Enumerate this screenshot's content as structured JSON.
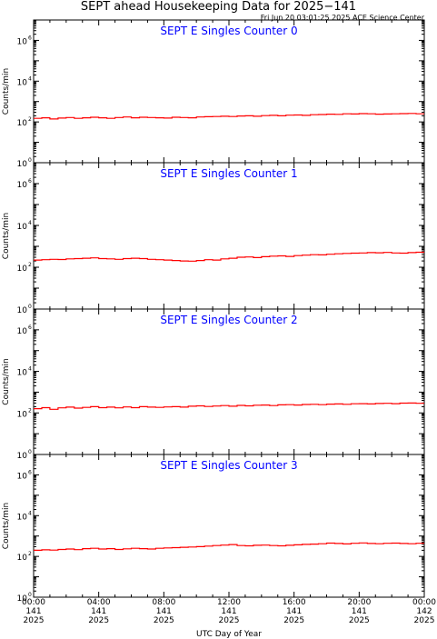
{
  "title": "SEPT ahead Housekeeping Data for 2025−141",
  "timestamp": "Fri Jun 20 03:01:25 2025 ACE Science Center",
  "colors": {
    "trace": "#ff0000",
    "panel_title": "#0000ff",
    "axes": "#000000",
    "background": "#ffffff"
  },
  "chart_data": [
    {
      "type": "line",
      "title": "SEPT E Singles Counter 0",
      "ylabel": "Counts/min",
      "yscale": "log",
      "ylim": [
        1,
        10000000
      ],
      "y_ticks": [
        {
          "base": "10",
          "exp": "0",
          "value": 1
        },
        {
          "base": "10",
          "exp": "2",
          "value": 100
        },
        {
          "base": "10",
          "exp": "4",
          "value": 10000
        },
        {
          "base": "10",
          "exp": "6",
          "value": 1000000
        }
      ],
      "x_hours": [
        0,
        0.5,
        1,
        1.5,
        2,
        2.5,
        3,
        3.5,
        4,
        4.5,
        5,
        5.5,
        6,
        6.5,
        7,
        7.5,
        8,
        8.5,
        9,
        9.5,
        10,
        10.5,
        11,
        11.5,
        12,
        12.5,
        13,
        13.5,
        14,
        14.5,
        15,
        15.5,
        16,
        16.5,
        17,
        17.5,
        18,
        18.5,
        19,
        19.5,
        20,
        20.5,
        21,
        21.5,
        22,
        22.5,
        23,
        23.5,
        24
      ],
      "y": [
        150,
        160,
        140,
        155,
        165,
        150,
        160,
        170,
        160,
        150,
        165,
        175,
        160,
        170,
        165,
        160,
        155,
        170,
        165,
        160,
        175,
        180,
        185,
        190,
        185,
        195,
        200,
        190,
        205,
        210,
        200,
        215,
        220,
        210,
        225,
        230,
        240,
        235,
        250,
        245,
        255,
        250,
        240,
        245,
        250,
        255,
        260,
        250,
        270
      ]
    },
    {
      "type": "line",
      "title": "SEPT E Singles Counter 1",
      "ylabel": "Counts/min",
      "yscale": "log",
      "ylim": [
        1,
        10000000
      ],
      "y_ticks": [
        {
          "base": "10",
          "exp": "0",
          "value": 1
        },
        {
          "base": "10",
          "exp": "2",
          "value": 100
        },
        {
          "base": "10",
          "exp": "4",
          "value": 10000
        },
        {
          "base": "10",
          "exp": "6",
          "value": 1000000
        }
      ],
      "x_hours": [
        0,
        0.5,
        1,
        1.5,
        2,
        2.5,
        3,
        3.5,
        4,
        4.5,
        5,
        5.5,
        6,
        6.5,
        7,
        7.5,
        8,
        8.5,
        9,
        9.5,
        10,
        10.5,
        11,
        11.5,
        12,
        12.5,
        13,
        13.5,
        14,
        14.5,
        15,
        15.5,
        16,
        16.5,
        17,
        17.5,
        18,
        18.5,
        19,
        19.5,
        20,
        20.5,
        21,
        21.5,
        22,
        22.5,
        23,
        23.5,
        24
      ],
      "y": [
        220,
        230,
        240,
        235,
        250,
        260,
        270,
        280,
        260,
        250,
        240,
        260,
        270,
        260,
        240,
        230,
        220,
        210,
        200,
        195,
        210,
        230,
        220,
        250,
        270,
        300,
        310,
        290,
        320,
        340,
        350,
        330,
        360,
        380,
        400,
        390,
        420,
        440,
        460,
        470,
        480,
        500,
        490,
        510,
        480,
        470,
        500,
        520,
        510
      ]
    },
    {
      "type": "line",
      "title": "SEPT E Singles Counter 2",
      "ylabel": "Counts/min",
      "yscale": "log",
      "ylim": [
        1,
        10000000
      ],
      "y_ticks": [
        {
          "base": "10",
          "exp": "0",
          "value": 1
        },
        {
          "base": "10",
          "exp": "2",
          "value": 100
        },
        {
          "base": "10",
          "exp": "4",
          "value": 10000
        },
        {
          "base": "10",
          "exp": "6",
          "value": 1000000
        }
      ],
      "x_hours": [
        0,
        0.5,
        1,
        1.5,
        2,
        2.5,
        3,
        3.5,
        4,
        4.5,
        5,
        5.5,
        6,
        6.5,
        7,
        7.5,
        8,
        8.5,
        9,
        9.5,
        10,
        10.5,
        11,
        11.5,
        12,
        12.5,
        13,
        13.5,
        14,
        14.5,
        15,
        15.5,
        16,
        16.5,
        17,
        17.5,
        18,
        18.5,
        19,
        19.5,
        20,
        20.5,
        21,
        21.5,
        22,
        22.5,
        23,
        23.5,
        24
      ],
      "y": [
        160,
        180,
        150,
        175,
        190,
        170,
        185,
        200,
        180,
        190,
        175,
        195,
        180,
        200,
        190,
        185,
        195,
        200,
        190,
        210,
        220,
        205,
        215,
        225,
        210,
        230,
        220,
        235,
        240,
        225,
        245,
        250,
        240,
        255,
        260,
        250,
        265,
        270,
        260,
        275,
        280,
        270,
        285,
        290,
        280,
        295,
        300,
        290,
        310
      ]
    },
    {
      "type": "line",
      "title": "SEPT E Singles Counter 3",
      "ylabel": "Counts/min",
      "yscale": "log",
      "ylim": [
        1,
        10000000
      ],
      "y_ticks": [
        {
          "base": "10",
          "exp": "0",
          "value": 1
        },
        {
          "base": "10",
          "exp": "2",
          "value": 100
        },
        {
          "base": "10",
          "exp": "4",
          "value": 10000
        },
        {
          "base": "10",
          "exp": "6",
          "value": 1000000
        }
      ],
      "x_hours": [
        0,
        0.5,
        1,
        1.5,
        2,
        2.5,
        3,
        3.5,
        4,
        4.5,
        5,
        5.5,
        6,
        6.5,
        7,
        7.5,
        8,
        8.5,
        9,
        9.5,
        10,
        10.5,
        11,
        11.5,
        12,
        12.5,
        13,
        13.5,
        14,
        14.5,
        15,
        15.5,
        16,
        16.5,
        17,
        17.5,
        18,
        18.5,
        19,
        19.5,
        20,
        20.5,
        21,
        21.5,
        22,
        22.5,
        23,
        23.5,
        24
      ],
      "y": [
        200,
        210,
        205,
        220,
        230,
        215,
        240,
        250,
        230,
        240,
        220,
        235,
        250,
        240,
        230,
        250,
        260,
        270,
        280,
        290,
        300,
        320,
        340,
        360,
        380,
        340,
        330,
        350,
        360,
        340,
        330,
        350,
        370,
        390,
        400,
        420,
        450,
        430,
        410,
        440,
        460,
        430,
        420,
        440,
        450,
        430,
        420,
        440,
        410
      ]
    }
  ],
  "x_axis": {
    "label": "UTC Day of Year",
    "range_hours": [
      0,
      24
    ],
    "ticks": [
      {
        "hour": 0,
        "time": "00:00",
        "doy": "141",
        "year": "2025"
      },
      {
        "hour": 4,
        "time": "04:00",
        "doy": "141",
        "year": "2025"
      },
      {
        "hour": 8,
        "time": "08:00",
        "doy": "141",
        "year": "2025"
      },
      {
        "hour": 12,
        "time": "12:00",
        "doy": "141",
        "year": "2025"
      },
      {
        "hour": 16,
        "time": "16:00",
        "doy": "141",
        "year": "2025"
      },
      {
        "hour": 20,
        "time": "20:00",
        "doy": "141",
        "year": "2025"
      },
      {
        "hour": 24,
        "time": "00:00",
        "doy": "142",
        "year": "2025"
      }
    ]
  }
}
